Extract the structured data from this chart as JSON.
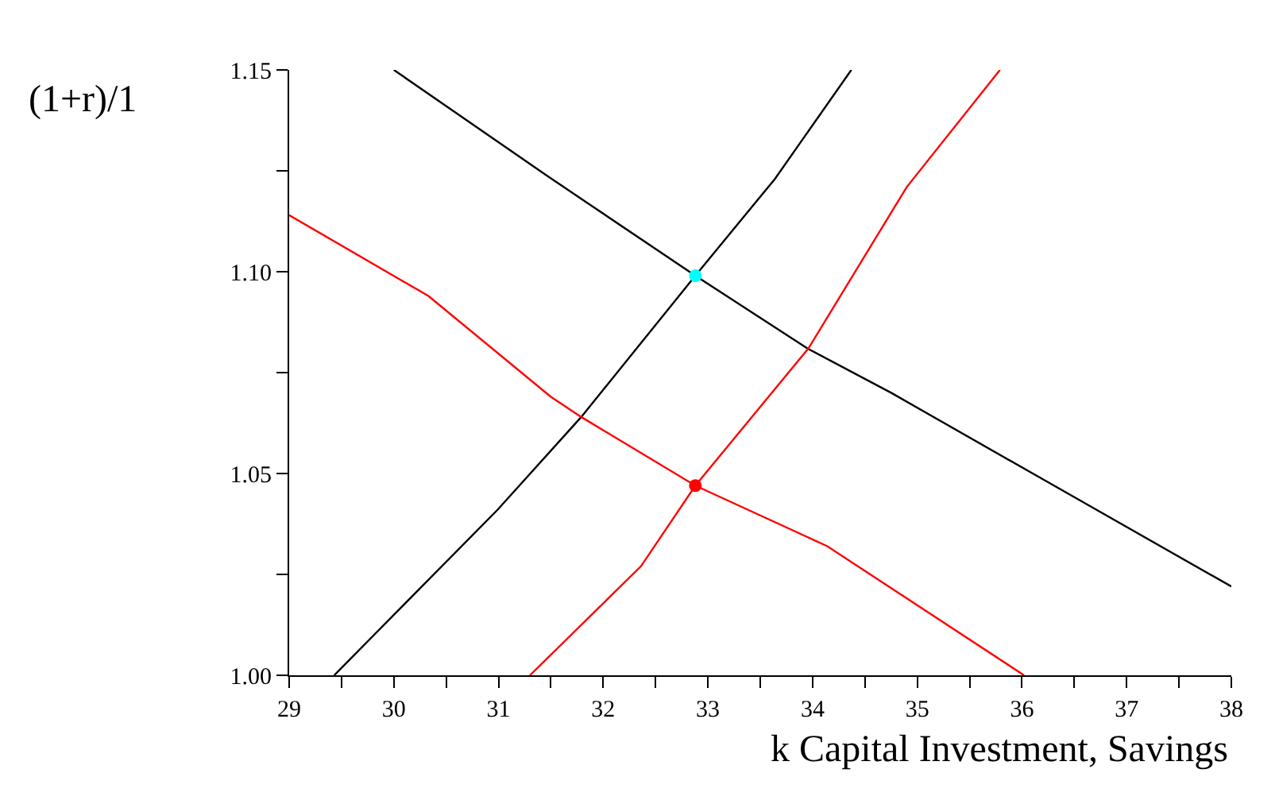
{
  "chart_data": {
    "type": "line",
    "xlabel": "k Capital Investment, Savings",
    "ylabel": "(1+r)/1",
    "xlim": [
      29,
      38
    ],
    "ylim": [
      1.0,
      1.15
    ],
    "xticks": [
      29,
      {
        "value": 29.5,
        "label": null
      },
      30,
      {
        "value": 30.5,
        "label": null
      },
      31,
      {
        "value": 31.5,
        "label": null
      },
      32,
      {
        "value": 32.5,
        "label": null
      },
      33,
      {
        "value": 33.5,
        "label": null
      },
      34,
      {
        "value": 34.5,
        "label": null
      },
      35,
      {
        "value": 35.5,
        "label": null
      },
      36,
      {
        "value": 36.5,
        "label": null
      },
      37,
      {
        "value": 37.5,
        "label": null
      },
      38
    ],
    "yticks": [
      {
        "value": 1.0,
        "label": "1.00"
      },
      {
        "value": 1.025,
        "label": null
      },
      {
        "value": 1.05,
        "label": "1.05"
      },
      {
        "value": 1.075,
        "label": null
      },
      {
        "value": 1.1,
        "label": "1.10"
      },
      {
        "value": 1.125,
        "label": null
      },
      {
        "value": 1.15,
        "label": "1.15"
      }
    ],
    "line_style": "solid",
    "series": [
      {
        "marker": "none",
        "color": "#000000",
        "x": [
          30.0,
          31.45,
          32.88,
          33.95,
          34.75,
          36.17,
          38.0
        ],
        "values": [
          1.15,
          1.124,
          1.099,
          1.081,
          1.07,
          1.049,
          1.022
        ]
      },
      {
        "marker": "none",
        "color": "#000000",
        "x": [
          29.43,
          30.99,
          31.79,
          32.88,
          33.64,
          34.37
        ],
        "values": [
          1.0,
          1.041,
          1.064,
          1.099,
          1.123,
          1.15
        ]
      },
      {
        "marker": "none",
        "color": "#ff0000",
        "x": [
          29.0,
          30.33,
          31.5,
          31.79,
          32.88,
          34.14,
          36.02
        ],
        "values": [
          1.114,
          1.094,
          1.069,
          1.064,
          1.047,
          1.032,
          1.0
        ]
      },
      {
        "marker": "none",
        "color": "#ff0000",
        "x": [
          31.3,
          32.36,
          32.88,
          33.96,
          34.9,
          35.79
        ],
        "values": [
          1.0,
          1.027,
          1.047,
          1.081,
          1.121,
          1.15
        ]
      },
      {
        "type": "scatter",
        "marker": "circle",
        "color": "#00ffff",
        "x": [
          32.88
        ],
        "values": [
          1.099
        ]
      },
      {
        "type": "scatter",
        "marker": "circle",
        "color": "#ff0000",
        "x": [
          32.88
        ],
        "values": [
          1.047
        ]
      }
    ]
  }
}
